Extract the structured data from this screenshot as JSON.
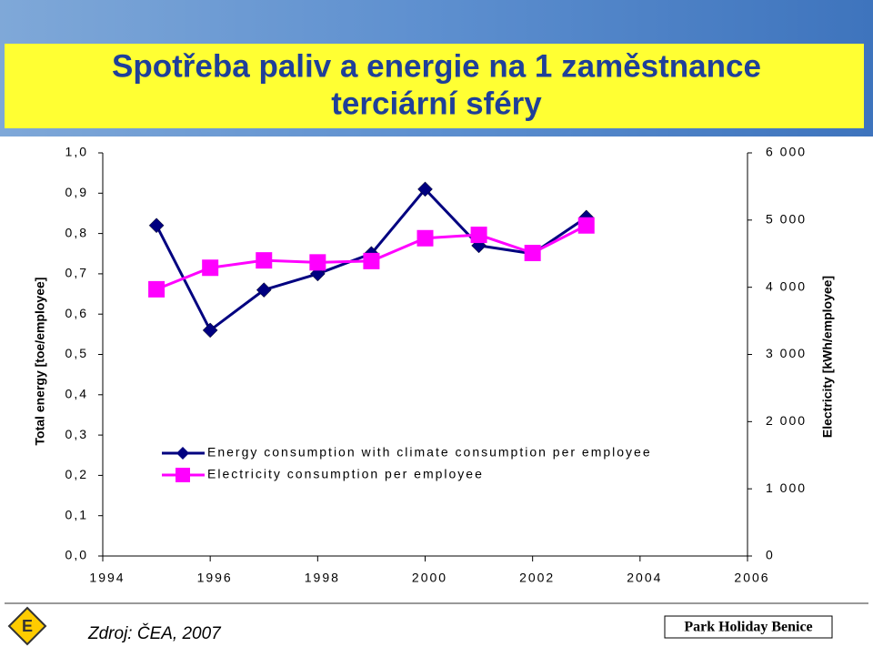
{
  "chart_data": {
    "type": "line",
    "title_lines": [
      "Spotřeba paliv a energie na 1 zaměstnance",
      "terciární sféry"
    ],
    "y_label": "Total energy [toe/employee]",
    "y2_label": "Electricity [kWh/employee]",
    "x": [
      1995,
      1996,
      1997,
      1998,
      1999,
      2000,
      2001,
      2002,
      2003
    ],
    "xlim": [
      1994,
      2006
    ],
    "xticks": [
      1994,
      1996,
      1998,
      2000,
      2002,
      2004,
      2006
    ],
    "ylim": [
      0,
      1
    ],
    "yticks": [
      {
        "value": 0,
        "label": "0,0"
      },
      {
        "value": 0.1,
        "label": "0,1"
      },
      {
        "value": 0.2,
        "label": "0,2"
      },
      {
        "value": 0.3,
        "label": "0,3"
      },
      {
        "value": 0.4,
        "label": "0,4"
      },
      {
        "value": 0.5,
        "label": "0,5"
      },
      {
        "value": 0.6,
        "label": "0,6"
      },
      {
        "value": 0.7,
        "label": "0,7"
      },
      {
        "value": 0.8,
        "label": "0,8"
      },
      {
        "value": 0.9,
        "label": "0,9"
      },
      {
        "value": 1,
        "label": "1,0"
      }
    ],
    "y2lim": [
      0,
      6000
    ],
    "y2ticks": [
      0,
      {
        "value": 1000,
        "label": "1 000"
      },
      {
        "value": 2000,
        "label": "2 000"
      },
      {
        "value": 3000,
        "label": "3 000"
      },
      {
        "value": 4000,
        "label": "4 000"
      },
      {
        "value": 5000,
        "label": "5 000"
      },
      {
        "value": 6000,
        "label": "6 000"
      }
    ],
    "series": [
      {
        "name": "Energy consumption with climate consumption per employee",
        "color": "#000080",
        "marker": "diamond",
        "values": [
          0.82,
          0.56,
          0.66,
          0.7,
          0.75,
          0.91,
          0.77,
          0.75,
          0.84
        ]
      },
      {
        "name": "Electricity consumption per employee",
        "color": "#ff00ff",
        "marker": "square",
        "axis": "y2",
        "values": [
          3970,
          4290,
          4400,
          4370,
          4390,
          4730,
          4780,
          4510,
          4920
        ]
      }
    ]
  },
  "footer": {
    "logo": "E",
    "source": "Zdroj: ČEA, 2007",
    "brand": "Park Holiday Benice"
  }
}
